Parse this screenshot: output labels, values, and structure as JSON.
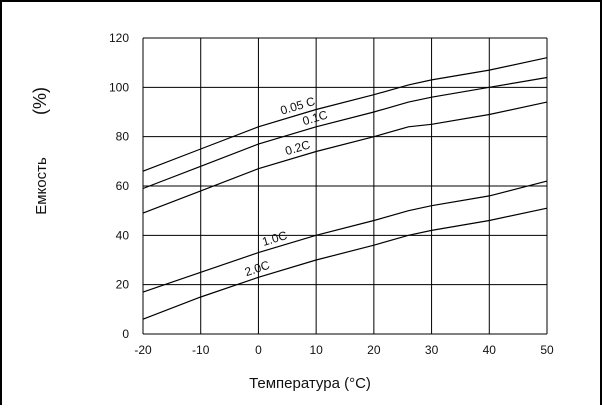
{
  "chart_data": {
    "type": "line",
    "title": "",
    "xlabel": "Температура (°C)",
    "ylabel": "Емкость",
    "ylabel_unit": "(%)",
    "xlim": [
      -20,
      50
    ],
    "ylim": [
      0,
      120
    ],
    "x_ticks": [
      -20,
      -10,
      0,
      10,
      20,
      30,
      40,
      50
    ],
    "y_ticks": [
      0,
      20,
      40,
      60,
      80,
      100,
      120
    ],
    "x_tick_labels": [
      "-20",
      "-10",
      "0",
      "10",
      "20",
      "30",
      "40",
      "50"
    ],
    "y_tick_labels": [
      "0",
      "20",
      "40",
      "60",
      "80",
      "100",
      "120"
    ],
    "grid": true,
    "legend": "none",
    "series": [
      {
        "name": "0.05 C",
        "x": [
          -20,
          -10,
          0,
          10,
          20,
          26,
          30,
          40,
          50
        ],
        "y": [
          66,
          75,
          84,
          91,
          97,
          101,
          103,
          107,
          112
        ]
      },
      {
        "name": "0.1C",
        "x": [
          -20,
          -10,
          0,
          10,
          20,
          26,
          30,
          40,
          50
        ],
        "y": [
          59,
          68,
          77,
          84,
          90,
          94,
          96,
          100,
          104
        ]
      },
      {
        "name": "0.2C",
        "x": [
          -20,
          -10,
          0,
          10,
          20,
          26,
          30,
          40,
          50
        ],
        "y": [
          49,
          58,
          67,
          74,
          80,
          84,
          85,
          89,
          94
        ]
      },
      {
        "name": "1.0C",
        "x": [
          -20,
          -10,
          0,
          10,
          20,
          26,
          30,
          40,
          50
        ],
        "y": [
          17,
          25,
          33,
          40,
          46,
          50,
          52,
          56,
          62
        ]
      },
      {
        "name": "2.0C",
        "x": [
          -20,
          -10,
          0,
          10,
          20,
          26,
          30,
          40,
          50
        ],
        "y": [
          6,
          15,
          23,
          30,
          36,
          40,
          42,
          46,
          51
        ]
      }
    ]
  }
}
